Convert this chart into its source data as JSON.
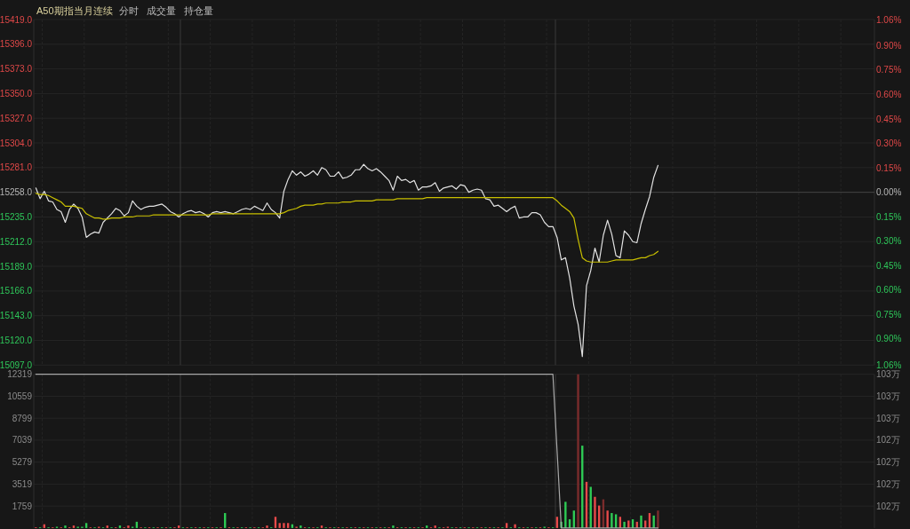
{
  "chart_data": [
    {
      "type": "line",
      "title": "A50期指当月连续",
      "annotations": [
        "分时",
        "成交量",
        "持仓量"
      ],
      "categories": [
        null,
        null,
        null,
        null,
        null,
        null,
        null,
        null,
        null,
        null,
        null,
        null,
        null,
        null,
        null,
        null,
        null,
        null,
        null,
        null,
        null,
        null,
        null,
        null,
        null,
        null,
        null,
        null,
        null,
        null,
        null,
        null,
        null,
        null,
        null,
        null,
        null,
        null,
        null,
        null,
        null,
        null,
        null,
        null,
        null,
        null,
        null,
        null,
        null,
        null,
        null,
        null,
        null,
        null,
        null,
        null,
        null,
        null,
        null,
        null,
        null,
        null,
        null,
        null,
        null,
        null,
        null,
        null,
        null,
        null,
        null,
        null,
        null,
        null,
        null,
        null,
        null,
        null,
        null,
        null,
        null,
        null,
        null,
        null,
        null,
        null,
        null,
        null,
        null,
        null,
        null,
        null,
        null,
        null,
        null,
        null,
        null,
        null,
        null,
        null,
        null,
        null,
        null,
        null,
        null,
        null,
        null,
        null,
        null,
        null,
        null,
        null,
        null,
        null,
        null,
        null,
        null,
        null,
        null,
        null,
        null,
        null,
        null,
        null,
        null,
        null,
        null,
        null,
        null,
        null,
        null,
        null,
        null,
        null,
        null,
        null,
        null,
        null,
        null,
        null,
        null,
        null,
        null,
        null,
        null,
        null,
        null,
        null,
        null,
        null,
        null,
        null,
        null,
        null,
        null,
        null,
        null,
        null,
        null,
        null,
        null,
        null,
        null,
        null,
        null,
        null,
        null,
        null,
        null,
        null,
        null,
        null,
        null,
        null,
        null,
        null,
        null,
        null,
        null,
        null,
        null,
        null,
        null,
        null,
        null,
        null,
        null,
        null,
        null,
        null,
        null,
        null,
        null,
        null,
        null,
        null,
        null,
        null,
        null,
        null
      ],
      "series": [
        {
          "color": "#e2e2e2",
          "values": [
            15262,
            15252,
            15259,
            15250,
            15249,
            15242,
            15240,
            15230,
            15242,
            15247,
            15243,
            15235,
            15216,
            15219,
            15221,
            15220,
            15230,
            15234,
            15238,
            15243,
            15241,
            15236,
            15239,
            15250,
            15245,
            15242,
            15244,
            15245,
            15245,
            15246,
            15247,
            15244,
            15240,
            15238,
            15235,
            15238,
            15240,
            15241,
            15239,
            15240,
            15238,
            15235,
            15239,
            15240,
            15239,
            15240,
            15239,
            15238,
            15240,
            15242,
            15243,
            15242,
            15245,
            15243,
            15241,
            15248,
            15242,
            15239,
            15234,
            15259,
            15270,
            15278,
            15274,
            15277,
            15273,
            15275,
            15278,
            15274,
            15281,
            15279,
            15273,
            15273,
            15277,
            15271,
            15272,
            15274,
            15279,
            15279,
            15284,
            15280,
            15278,
            15280,
            15277,
            15273,
            15269,
            15260,
            15273,
            15269,
            15270,
            15267,
            15269,
            15260,
            15263,
            15263,
            15264,
            15267,
            15259,
            15262,
            15263,
            15264,
            15261,
            15265,
            15264,
            15258,
            15260,
            15261,
            15260,
            15252,
            15251,
            15245,
            15246,
            15243,
            15240,
            15243,
            15245,
            15234,
            15235,
            15235,
            15239,
            15239,
            15237,
            15230,
            15226,
            15226,
            15216,
            15195,
            15197,
            15178,
            15152,
            15135,
            15105,
            15171,
            15185,
            15206,
            15193,
            15218,
            15232,
            15219,
            15199,
            15197,
            15222,
            15218,
            15212,
            15211,
            15229,
            15242,
            15254,
            15272,
            15283,
            null,
            null,
            null,
            null,
            null,
            null,
            null,
            null,
            null,
            null,
            null,
            null,
            null,
            null,
            null,
            null,
            null,
            null,
            null,
            null,
            null,
            null,
            null,
            null,
            null,
            null,
            null,
            null,
            null,
            null,
            null,
            null,
            null,
            null,
            null,
            null,
            null,
            null,
            null,
            null,
            null,
            null,
            null,
            null,
            null,
            null,
            null,
            null,
            null,
            null,
            null
          ]
        },
        {
          "color": "#c9c000",
          "values": [
            15257,
            15256,
            15256,
            15255,
            15253,
            15251,
            15249,
            15245,
            15245,
            15245,
            15244,
            15243,
            15238,
            15236,
            15234,
            15234,
            15233,
            15233,
            15234,
            15234,
            15234,
            15235,
            15235,
            15235,
            15236,
            15236,
            15236,
            15236,
            15237,
            15237,
            15237,
            15237,
            15237,
            15237,
            15237,
            15237,
            15237,
            15237,
            15237,
            15237,
            15237,
            15237,
            15238,
            15238,
            15238,
            15238,
            15238,
            15238,
            15238,
            15238,
            15238,
            15238,
            15238,
            15238,
            15238,
            15238,
            15238,
            15238,
            15238,
            15239,
            15241,
            15242,
            15243,
            15245,
            15246,
            15246,
            15246,
            15247,
            15247,
            15248,
            15248,
            15248,
            15248,
            15249,
            15249,
            15249,
            15250,
            15250,
            15250,
            15250,
            15250,
            15251,
            15251,
            15251,
            15251,
            15251,
            15252,
            15252,
            15252,
            15252,
            15252,
            15252,
            15252,
            15253,
            15253,
            15253,
            15253,
            15253,
            15253,
            15253,
            15253,
            15253,
            15253,
            15253,
            15253,
            15253,
            15253,
            15253,
            15253,
            15253,
            15253,
            15253,
            15253,
            15253,
            15253,
            15253,
            15253,
            15253,
            15253,
            15253,
            15253,
            15253,
            15253,
            15253,
            15250,
            15246,
            15243,
            15240,
            15234,
            15214,
            15197,
            15194,
            15193,
            15193,
            15193,
            15193,
            15193,
            15194,
            15195,
            15195,
            15195,
            15195,
            15195,
            15196,
            15197,
            15197,
            15199,
            15200,
            15203,
            null,
            null,
            null,
            null,
            null,
            null,
            null,
            null,
            null,
            null,
            null,
            null,
            null,
            null,
            null,
            null,
            null,
            null,
            null,
            null,
            null,
            null,
            null,
            null,
            null,
            null,
            null,
            null,
            null,
            null,
            null,
            null,
            null,
            null,
            null,
            null,
            null,
            null,
            null,
            null,
            null,
            null,
            null,
            null,
            null,
            null,
            null,
            null,
            null,
            null,
            null
          ]
        }
      ],
      "ylim": [
        15097,
        15419
      ],
      "yticks": [
        {
          "value": 15097,
          "label": "15097.0"
        },
        {
          "value": 15120,
          "label": "15120.0"
        },
        {
          "value": 15143,
          "label": "15143.0"
        },
        {
          "value": 15166,
          "label": "15166.0"
        },
        {
          "value": 15189,
          "label": "15189.0"
        },
        {
          "value": 15212,
          "label": "15212.0"
        },
        {
          "value": 15235,
          "label": "15235.0"
        },
        {
          "value": 15258,
          "label": "15258.0"
        },
        {
          "value": 15281,
          "label": "15281.0"
        },
        {
          "value": 15304,
          "label": "15304.0"
        },
        {
          "value": 15327,
          "label": "15327.0"
        },
        {
          "value": 15350,
          "label": "15350.0"
        },
        {
          "value": 15373,
          "label": "15373.0"
        },
        {
          "value": 15396,
          "label": "15396.0"
        },
        {
          "value": 15419,
          "label": "15419.0"
        }
      ],
      "y2lim": [
        -1.06,
        1.06
      ],
      "y2ticks": [
        {
          "value": -1.06,
          "label": "1.06%"
        },
        {
          "value": -0.9,
          "label": "0.90%"
        },
        {
          "value": -0.75,
          "label": "0.75%"
        },
        {
          "value": -0.6,
          "label": "0.60%"
        },
        {
          "value": -0.45,
          "label": "0.45%"
        },
        {
          "value": -0.3,
          "label": "0.30%"
        },
        {
          "value": -0.15,
          "label": "0.15%"
        },
        {
          "value": 0,
          "label": "0.00%"
        },
        {
          "value": 0.15,
          "label": "0.15%"
        },
        {
          "value": 0.3,
          "label": "0.30%"
        },
        {
          "value": 0.45,
          "label": "0.45%"
        },
        {
          "value": 0.6,
          "label": "0.60%"
        },
        {
          "value": 0.75,
          "label": "0.75%"
        },
        {
          "value": 0.9,
          "label": "0.90%"
        },
        {
          "value": 1.06,
          "label": "1.06%"
        }
      ],
      "ref_lines": [
        {
          "axis": "y",
          "value": 15258,
          "color": "#444444"
        }
      ],
      "grid": true
    },
    {
      "type": "bar",
      "categories": [
        null,
        null,
        null,
        null,
        null,
        null,
        null,
        null,
        null,
        null,
        null,
        null,
        null,
        null,
        null,
        null,
        null,
        null,
        null,
        null,
        null,
        null,
        null,
        null,
        null,
        null,
        null,
        null,
        null,
        null,
        null,
        null,
        null,
        null,
        null,
        null,
        null,
        null,
        null,
        null,
        null,
        null,
        null,
        null,
        null,
        null,
        null,
        null,
        null,
        null,
        null,
        null,
        null,
        null,
        null,
        null,
        null,
        null,
        null,
        null,
        null,
        null,
        null,
        null,
        null,
        null,
        null,
        null,
        null,
        null,
        null,
        null,
        null,
        null,
        null,
        null,
        null,
        null,
        null,
        null,
        null,
        null,
        null,
        null,
        null,
        null,
        null,
        null,
        null,
        null,
        null,
        null,
        null,
        null,
        null,
        null,
        null,
        null,
        null,
        null,
        null,
        null,
        null,
        null,
        null,
        null,
        null,
        null,
        null,
        null,
        null,
        null,
        null,
        null,
        null,
        null,
        null,
        null,
        null,
        null,
        null,
        null,
        null,
        null,
        null,
        null,
        null,
        null,
        null,
        null,
        null,
        null,
        null,
        null,
        null,
        null,
        null,
        null,
        null,
        null,
        null,
        null,
        null,
        null,
        null,
        null,
        null,
        null,
        null,
        null,
        null,
        null,
        null,
        null,
        null,
        null,
        null,
        null,
        null,
        null,
        null,
        null,
        null,
        null,
        null,
        null,
        null,
        null,
        null,
        null,
        null,
        null,
        null,
        null,
        null,
        null,
        null,
        null,
        null,
        null,
        null,
        null,
        null,
        null,
        null,
        null,
        null,
        null,
        null,
        null,
        null,
        null,
        null,
        null,
        null,
        null,
        null,
        null,
        null,
        null
      ],
      "series": [
        {
          "values": [
            50,
            50,
            300,
            50,
            50,
            100,
            50,
            200,
            50,
            200,
            100,
            100,
            400,
            50,
            50,
            100,
            50,
            200,
            50,
            50,
            200,
            50,
            200,
            100,
            500,
            50,
            50,
            50,
            50,
            50,
            50,
            50,
            50,
            50,
            200,
            50,
            50,
            50,
            50,
            50,
            50,
            50,
            50,
            50,
            50,
            1200,
            50,
            50,
            50,
            50,
            50,
            50,
            50,
            50,
            50,
            200,
            50,
            900,
            400,
            400,
            400,
            300,
            100,
            200,
            50,
            50,
            50,
            50,
            200,
            50,
            50,
            50,
            50,
            50,
            50,
            50,
            50,
            50,
            50,
            50,
            50,
            50,
            50,
            50,
            50,
            200,
            50,
            50,
            50,
            50,
            50,
            50,
            50,
            200,
            50,
            200,
            50,
            50,
            100,
            50,
            50,
            50,
            50,
            50,
            50,
            50,
            50,
            50,
            50,
            50,
            50,
            50,
            400,
            50,
            300,
            50,
            50,
            50,
            50,
            50,
            50,
            100,
            50,
            50,
            900,
            500,
            2100,
            700,
            1400,
            12319,
            6600,
            3700,
            3300,
            2500,
            1800,
            2300,
            1400,
            1200,
            1100,
            900,
            500,
            600,
            700,
            500,
            1000,
            600,
            1200,
            1000,
            1400,
            null,
            null,
            null,
            null,
            null,
            null,
            null,
            null,
            null,
            null,
            null,
            null,
            null,
            null,
            null,
            null,
            null,
            null,
            null,
            null,
            null,
            null,
            null,
            null,
            null,
            null,
            null,
            null,
            null,
            null,
            null,
            null,
            null,
            null,
            null,
            null,
            null,
            null,
            null,
            null,
            null,
            null,
            null,
            null,
            null,
            null,
            null,
            null,
            null,
            null,
            null
          ],
          "colors": [
            "#e84a4a",
            "#2ecc55",
            "#e84a4a",
            "#2ecc55",
            "#e84a4a",
            "#2ecc55",
            "#e84a4a",
            "#2ecc55",
            "#e84a4a",
            "#e84a4a",
            "#2ecc55",
            "#2ecc55",
            "#2ecc55",
            "#e84a4a",
            "#2ecc55",
            "#e84a4a",
            "#2ecc55",
            "#e84a4a",
            "#2ecc55",
            "#e84a4a",
            "#2ecc55",
            "#e84a4a",
            "#e84a4a",
            "#2ecc55",
            "#2ecc55",
            "#e84a4a",
            "#2ecc55",
            "#e84a4a",
            "#2ecc55",
            "#e84a4a",
            "#2ecc55",
            "#e84a4a",
            "#2ecc55",
            "#e84a4a",
            "#e84a4a",
            "#2ecc55",
            "#e84a4a",
            "#2ecc55",
            "#e84a4a",
            "#2ecc55",
            "#e84a4a",
            "#2ecc55",
            "#e84a4a",
            "#2ecc55",
            "#e84a4a",
            "#2ecc55",
            "#e84a4a",
            "#2ecc55",
            "#e84a4a",
            "#2ecc55",
            "#e84a4a",
            "#2ecc55",
            "#e84a4a",
            "#2ecc55",
            "#e84a4a",
            "#e84a4a",
            "#2ecc55",
            "#e84a4a",
            "#e84a4a",
            "#e84a4a",
            "#e84a4a",
            "#2ecc55",
            "#e84a4a",
            "#2ecc55",
            "#e84a4a",
            "#2ecc55",
            "#e84a4a",
            "#2ecc55",
            "#e84a4a",
            "#2ecc55",
            "#e84a4a",
            "#2ecc55",
            "#e84a4a",
            "#2ecc55",
            "#e84a4a",
            "#2ecc55",
            "#e84a4a",
            "#2ecc55",
            "#e84a4a",
            "#2ecc55",
            "#e84a4a",
            "#2ecc55",
            "#e84a4a",
            "#2ecc55",
            "#e84a4a",
            "#2ecc55",
            "#e84a4a",
            "#2ecc55",
            "#e84a4a",
            "#2ecc55",
            "#e84a4a",
            "#2ecc55",
            "#e84a4a",
            "#2ecc55",
            "#e84a4a",
            "#e84a4a",
            "#2ecc55",
            "#e84a4a",
            "#e84a4a",
            "#2ecc55",
            "#e84a4a",
            "#2ecc55",
            "#e84a4a",
            "#2ecc55",
            "#e84a4a",
            "#2ecc55",
            "#e84a4a",
            "#2ecc55",
            "#e84a4a",
            "#2ecc55",
            "#e84a4a",
            "#2ecc55",
            "#e84a4a",
            "#2ecc55",
            "#e84a4a",
            "#2ecc55",
            "#e84a4a",
            "#2ecc55",
            "#e84a4a",
            "#2ecc55",
            "#e84a4a",
            "#2ecc55",
            "#e84a4a",
            "#2ecc55",
            "#e84a4a",
            "#2ecc55",
            "#2ecc55",
            "#2ecc55",
            "#2ecc55",
            "#7a2c2c",
            "#2ecc55",
            "#e84a4a",
            "#2ecc55",
            "#e84a4a",
            "#e84a4a",
            "#7a2c2c",
            "#e84a4a",
            "#2ecc55",
            "#2ecc55",
            "#e84a4a",
            "#2ecc55",
            "#e84a4a",
            "#2ecc55",
            "#e84a4a",
            "#2ecc55",
            "#e84a4a",
            "#e84a4a",
            "#2ecc55",
            "#7a2c2c",
            null,
            null,
            null,
            null,
            null,
            null,
            null,
            null,
            null,
            null,
            null,
            null,
            null,
            null,
            null,
            null,
            null,
            null,
            null,
            null,
            null,
            null,
            null,
            null,
            null,
            null,
            null,
            null,
            null,
            null,
            null,
            null,
            null,
            null,
            null,
            null,
            null,
            null,
            null,
            null,
            null,
            null,
            null,
            null,
            null,
            null,
            null,
            null,
            null,
            null,
            null
          ]
        },
        {
          "type": "line",
          "axis": "y2",
          "color": "#a8a8a8",
          "values": [
            103,
            103,
            103,
            103,
            103,
            103,
            103,
            103,
            103,
            103,
            103,
            103,
            103,
            103,
            103,
            103,
            103,
            103,
            103,
            103,
            103,
            103,
            103,
            103,
            103,
            103,
            103,
            103,
            103,
            103,
            103,
            103,
            103,
            103,
            103,
            103,
            103,
            103,
            103,
            103,
            103,
            103,
            103,
            103,
            103,
            103,
            103,
            103,
            103,
            103,
            103,
            103,
            103,
            103,
            103,
            103,
            103,
            103,
            103,
            103,
            103,
            103,
            103,
            103,
            103,
            103,
            103,
            103,
            103,
            103,
            103,
            103,
            103,
            103,
            103,
            103,
            103,
            103,
            103,
            103,
            103,
            103,
            103,
            103,
            103,
            103,
            103,
            103,
            103,
            103,
            103,
            103,
            103,
            103,
            103,
            103,
            103,
            103,
            103,
            103,
            103,
            103,
            103,
            103,
            103,
            103,
            103,
            103,
            103,
            103,
            103,
            103,
            103,
            103,
            103,
            103,
            103,
            103,
            103,
            103,
            103,
            103,
            103,
            103,
            102.3,
            101.6,
            101.6,
            101.6,
            101.6,
            101.6,
            101.6,
            101.6,
            101.6,
            101.6,
            101.6,
            101.6,
            101.6,
            101.6,
            101.6,
            101.6,
            101.6,
            101.6,
            101.6,
            101.6,
            101.6,
            101.6,
            101.6,
            101.6,
            101.6,
            null,
            null,
            null,
            null,
            null,
            null,
            null,
            null,
            null,
            null,
            null,
            null,
            null,
            null,
            null,
            null,
            null,
            null,
            null,
            null,
            null,
            null,
            null,
            null,
            null,
            null,
            null,
            null,
            null,
            null,
            null,
            null,
            null,
            null,
            null,
            null,
            null,
            null,
            null,
            null,
            null,
            null,
            null,
            null,
            null,
            null,
            null,
            null,
            null,
            null,
            null
          ]
        }
      ],
      "ylim": [
        0,
        12319
      ],
      "yticks": [
        1759,
        3519,
        5279,
        7039,
        8799,
        10559,
        12319
      ],
      "y2lim": [
        101.6,
        103.0
      ],
      "y2ticks": [
        {
          "value": 101.8,
          "label": "102万"
        },
        {
          "value": 102.0,
          "label": "102万"
        },
        {
          "value": 102.2,
          "label": "102万"
        },
        {
          "value": 102.4,
          "label": "102万"
        },
        {
          "value": 102.6,
          "label": "103万"
        },
        {
          "value": 102.8,
          "label": "103万"
        },
        {
          "value": 103.0,
          "label": "103万"
        }
      ],
      "grid": true
    }
  ]
}
